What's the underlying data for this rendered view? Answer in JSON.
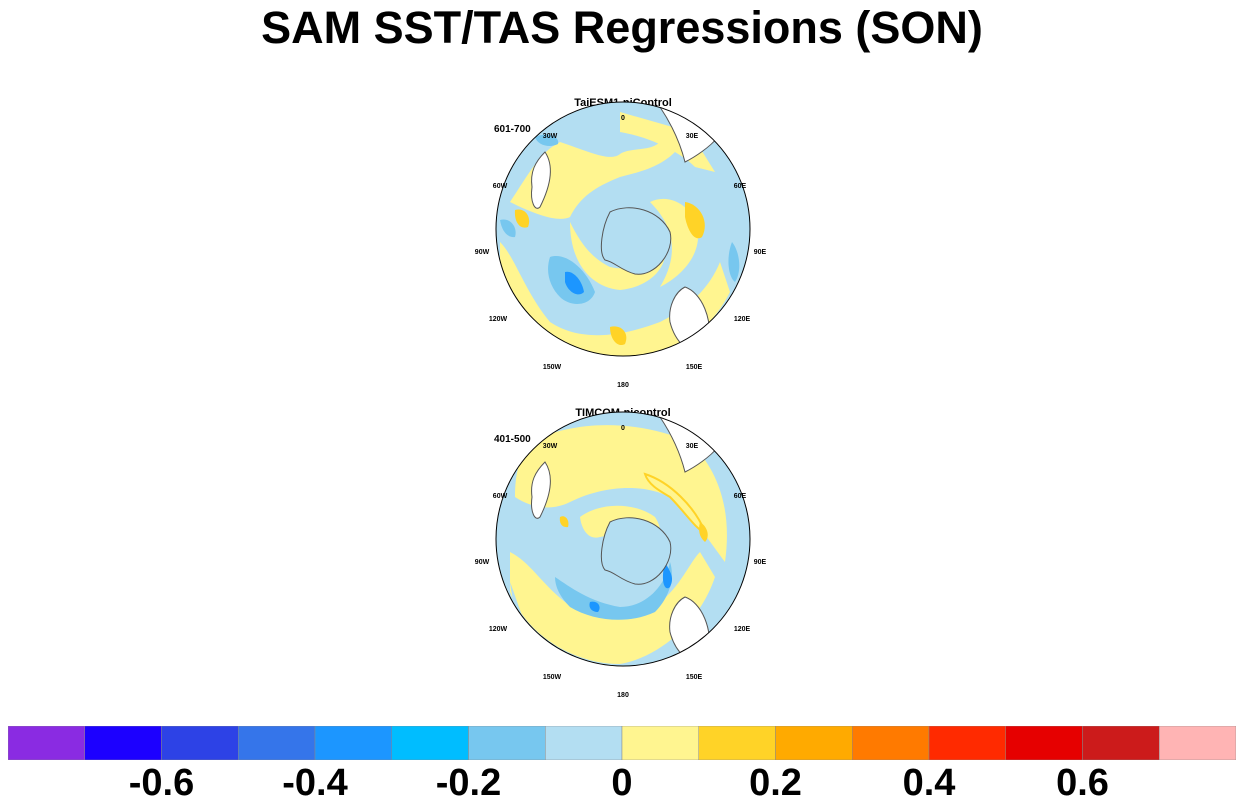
{
  "title": "SAM SST/TAS Regressions (SON)",
  "panels": [
    {
      "title": "TaiESM1-piControl",
      "period": "601-700"
    },
    {
      "title": "TIMCOM-picontrol",
      "period": "401-500"
    }
  ],
  "longitude_labels": [
    "0",
    "30E",
    "60E",
    "90E",
    "120E",
    "150E",
    "180",
    "150W",
    "120W",
    "90W",
    "60W",
    "30W"
  ],
  "colors": {
    "land_outline": "#555555",
    "antarctica": "#b3def2",
    "land": "#ffffff"
  },
  "chart_data": [
    {
      "type": "heatmap",
      "title": "TaiESM1-piControl",
      "subtitle": "601-700",
      "projection": "south polar stereographic",
      "dominant_values": [
        0.05,
        -0.05,
        0.15,
        -0.15,
        -0.25,
        -0.35
      ]
    },
    {
      "type": "heatmap",
      "title": "TIMCOM-picontrol",
      "subtitle": "401-500",
      "projection": "south polar stereographic",
      "dominant_values": [
        0.05,
        -0.05,
        0.15,
        -0.15,
        -0.25
      ]
    }
  ],
  "colorbar": {
    "boundaries": [
      -0.7,
      -0.6,
      -0.5,
      -0.4,
      -0.3,
      -0.2,
      -0.1,
      0,
      0.1,
      0.2,
      0.3,
      0.4,
      0.5,
      0.6,
      0.7
    ],
    "colors": [
      "#8a2be2",
      "#1c00ff",
      "#2d42e6",
      "#3575ea",
      "#1c96ff",
      "#00bdff",
      "#77c7ef",
      "#b3def2",
      "#fff590",
      "#ffd327",
      "#ffaa00",
      "#ff7a00",
      "#ff2a00",
      "#e60000",
      "#cc1b1b",
      "#ffb4b4"
    ],
    "tick_labels": [
      {
        "text": "-0.6",
        "value": -0.6
      },
      {
        "text": "-0.4",
        "value": -0.4
      },
      {
        "text": "-0.2",
        "value": -0.2
      },
      {
        "text": "0",
        "value": 0
      },
      {
        "text": "0.2",
        "value": 0.2
      },
      {
        "text": "0.4",
        "value": 0.4
      },
      {
        "text": "0.6",
        "value": 0.6
      }
    ]
  }
}
